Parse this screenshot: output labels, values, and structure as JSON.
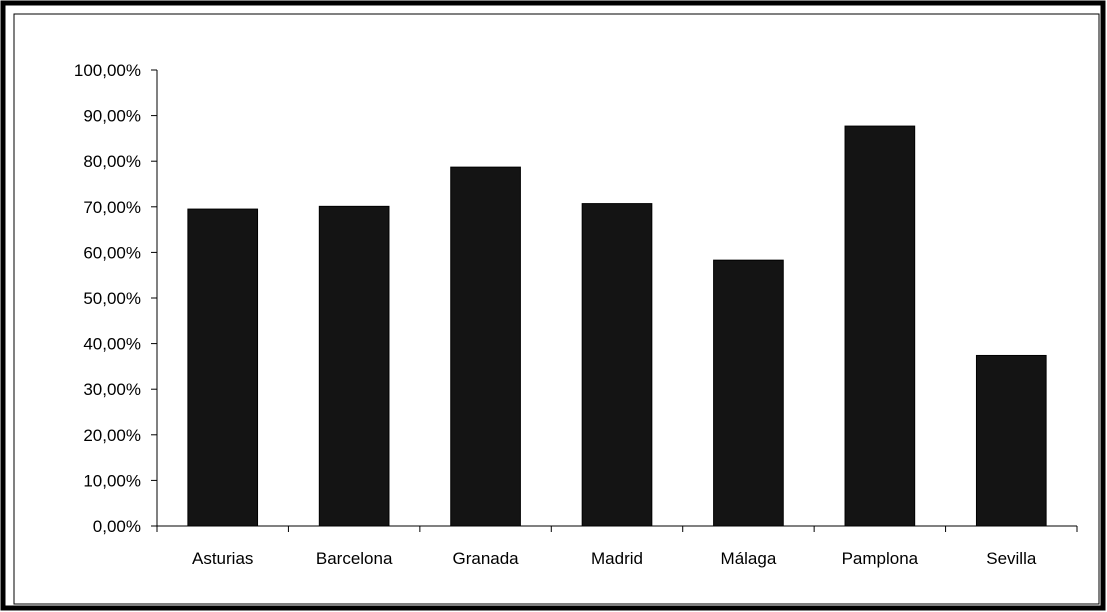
{
  "chart_data": {
    "type": "bar",
    "categories": [
      "Asturias",
      "Barcelona",
      "Granada",
      "Madrid",
      "Málaga",
      "Pamplona",
      "Sevilla"
    ],
    "values": [
      69.5,
      70.1,
      78.7,
      70.7,
      58.3,
      87.7,
      37.4
    ],
    "unit": "%",
    "title": "",
    "xlabel": "",
    "ylabel": "",
    "ylim": [
      0,
      100
    ],
    "yticks": [
      "0,00%",
      "10,00%",
      "20,00%",
      "30,00%",
      "40,00%",
      "50,00%",
      "60,00%",
      "70,00%",
      "80,00%",
      "90,00%",
      "100,00%"
    ],
    "grid": false,
    "legend": "none",
    "bar_color": "#141414"
  }
}
